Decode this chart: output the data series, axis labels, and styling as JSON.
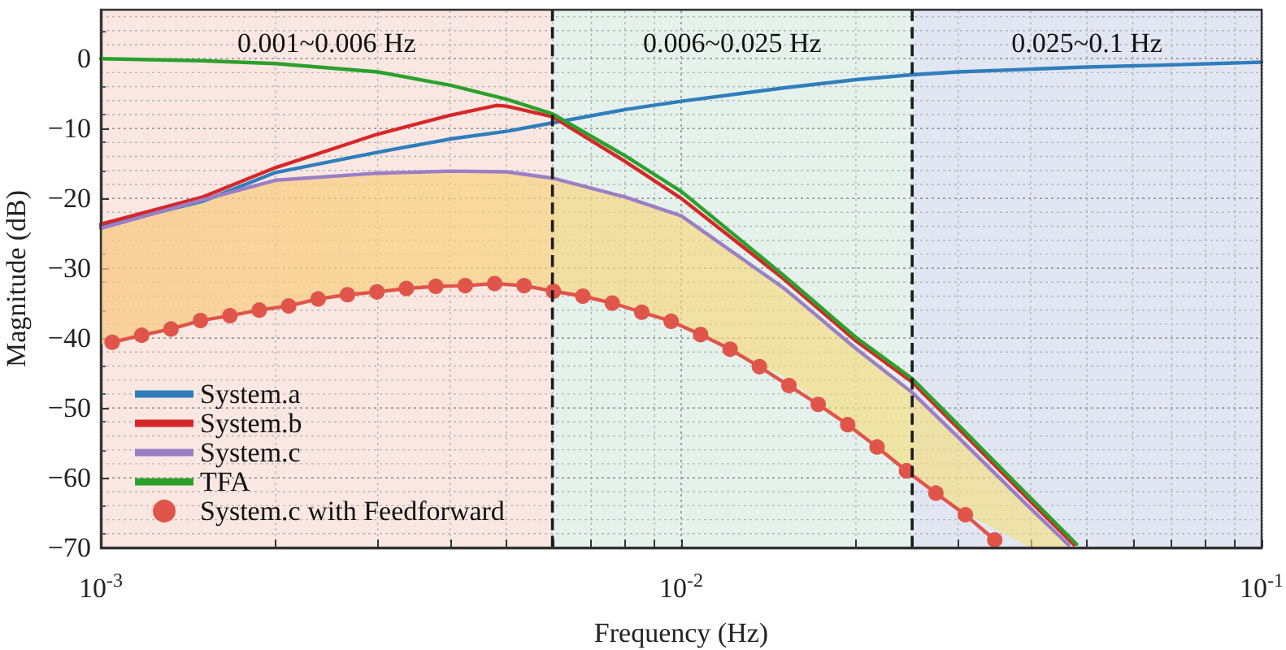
{
  "chart_data": {
    "type": "line",
    "xlabel": "Frequency (Hz)",
    "ylabel": "Magnitude (dB)",
    "log": "x",
    "xlim": [
      0.001,
      0.1
    ],
    "xticks": [
      {
        "value": 0.001,
        "label": "10$^{-3}$"
      },
      {
        "value": 0.01,
        "label": "10$^{-2}$"
      },
      {
        "value": 0.1,
        "label": "10$^{-1}$"
      }
    ],
    "ylim": [
      -70,
      7
    ],
    "yticks": [
      -70,
      -60,
      -50,
      -40,
      -30,
      -20,
      -10,
      0
    ],
    "grid": true,
    "legend": "bottom left",
    "marker": "none",
    "line_style": "solid",
    "bands": [
      {
        "axis": "x",
        "from": 0.001,
        "to": 0.006,
        "label": "0.001~0.006 Hz",
        "color": "#fbe7e2"
      },
      {
        "axis": "x",
        "from": 0.006,
        "to": 0.025,
        "label": "0.006~0.025 Hz",
        "color": "#e5f2ec"
      },
      {
        "axis": "x",
        "from": 0.025,
        "to": 0.1,
        "label": "0.025~0.1 Hz",
        "color": "#e2e6f3"
      }
    ],
    "ref_lines": [
      {
        "axis": "x",
        "value": 0.006,
        "color": "#1a1a1a",
        "line_style": "dashed"
      },
      {
        "axis": "x",
        "value": 0.025,
        "color": "#1a1a1a",
        "line_style": "dashed"
      }
    ],
    "series": [
      {
        "name": "System.a",
        "color": "#2f7ebc",
        "x": [
          0.001,
          0.0015,
          0.002,
          0.003,
          0.004,
          0.005,
          0.006,
          0.008,
          0.01,
          0.015,
          0.02,
          0.025,
          0.03,
          0.04,
          0.05,
          0.07,
          0.1
        ],
        "values": [
          -24,
          -20.4,
          -16.3,
          -13.4,
          -11.5,
          -10.4,
          -9.2,
          -7.3,
          -6.1,
          -4.2,
          -3.0,
          -2.3,
          -1.9,
          -1.5,
          -1.2,
          -0.9,
          -0.5
        ]
      },
      {
        "name": "System.b",
        "color": "#d62728",
        "x": [
          0.001,
          0.0015,
          0.002,
          0.003,
          0.004,
          0.0048,
          0.005,
          0.006,
          0.008,
          0.01,
          0.015,
          0.02,
          0.025,
          0.03,
          0.04,
          0.0475
        ],
        "values": [
          -23.7,
          -19.8,
          -15.6,
          -10.8,
          -8.1,
          -6.7,
          -6.8,
          -8.3,
          -14.7,
          -20.0,
          -31.5,
          -40.4,
          -46.3,
          -52.9,
          -63.4,
          -69.6
        ]
      },
      {
        "name": "System.c",
        "color": "#9b7fc4",
        "x": [
          0.001,
          0.0015,
          0.002,
          0.003,
          0.004,
          0.005,
          0.006,
          0.008,
          0.01,
          0.015,
          0.02,
          0.025,
          0.03,
          0.04,
          0.0465
        ],
        "values": [
          -24.3,
          -20.2,
          -17.4,
          -16.4,
          -16.1,
          -16.2,
          -17.1,
          -19.8,
          -22.5,
          -32.8,
          -41.5,
          -47.8,
          -54.2,
          -64.4,
          -69.6
        ],
        "upper": [
          -24.3,
          -20.2,
          -17.4,
          -16.4,
          -16.1,
          -16.2,
          -17.1,
          -19.8,
          -22.5,
          -32.8,
          -41.5,
          -47.8,
          -54.2,
          -64.4,
          -69.6
        ],
        "lower": [
          -40.9,
          -37.3,
          -35.7,
          -33.4,
          -32.5,
          -32.3,
          -33.2,
          -35.6,
          -38.2,
          -45.5,
          -53.1,
          -59.5,
          -64.6,
          -70,
          -70
        ]
      },
      {
        "name": "TFA",
        "color": "#2ca02c",
        "x": [
          0.001,
          0.0015,
          0.002,
          0.003,
          0.004,
          0.005,
          0.006,
          0.008,
          0.01,
          0.015,
          0.02,
          0.025,
          0.03,
          0.04,
          0.048
        ],
        "values": [
          0,
          -0.3,
          -0.7,
          -1.9,
          -3.8,
          -5.8,
          -7.9,
          -13.9,
          -19.0,
          -31.0,
          -39.9,
          -45.8,
          -52.4,
          -62.9,
          -69.5
        ]
      },
      {
        "name": "System.c with Feedforward",
        "color": "#e0554a",
        "marker": "circle",
        "x": [
          0.001046,
          0.001176,
          0.001321,
          0.001485,
          0.001669,
          0.001875,
          0.002107,
          0.002368,
          0.002661,
          0.002991,
          0.003361,
          0.003777,
          0.004245,
          0.00477,
          0.005361,
          0.006024,
          0.00677,
          0.007608,
          0.00855,
          0.009609,
          0.0108,
          0.01214,
          0.01364,
          0.01533,
          0.01722,
          0.01936,
          0.02175,
          0.02444,
          0.02747,
          0.03087,
          0.03469
        ],
        "values": [
          -40.6,
          -39.6,
          -38.7,
          -37.5,
          -36.8,
          -36.0,
          -35.4,
          -34.4,
          -33.8,
          -33.4,
          -32.9,
          -32.6,
          -32.5,
          -32.2,
          -32.5,
          -33.3,
          -34.0,
          -35.0,
          -36.3,
          -37.6,
          -39.5,
          -41.6,
          -44.1,
          -46.8,
          -49.5,
          -52.4,
          -55.6,
          -59.0,
          -62.2,
          -65.3,
          -68.9
        ]
      }
    ]
  }
}
